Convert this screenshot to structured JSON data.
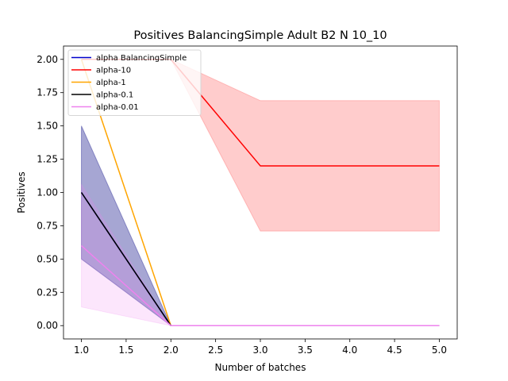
{
  "chart_data": {
    "type": "line",
    "title": "Positives BalancingSimple Adult B2 N 10_10",
    "xlabel": "Number of batches",
    "ylabel": "Positives",
    "xlim": [
      0.8,
      5.2
    ],
    "ylim": [
      -0.1,
      2.1
    ],
    "xticks": [
      1.0,
      1.5,
      2.0,
      2.5,
      3.0,
      3.5,
      4.0,
      4.5,
      5.0
    ],
    "xtick_labels": [
      "1.0",
      "1.5",
      "2.0",
      "2.5",
      "3.0",
      "3.5",
      "4.0",
      "4.5",
      "5.0"
    ],
    "yticks": [
      0.0,
      0.25,
      0.5,
      0.75,
      1.0,
      1.25,
      1.5,
      1.75,
      2.0
    ],
    "ytick_labels": [
      "0.00",
      "0.25",
      "0.50",
      "0.75",
      "1.00",
      "1.25",
      "1.50",
      "1.75",
      "2.00"
    ],
    "grid": false,
    "legend_position": "top-left",
    "x": [
      1,
      2,
      3,
      4,
      5
    ],
    "series": [
      {
        "name": "alpha BalancingSimple",
        "color": "#0000cc",
        "fill": "#000080",
        "fill_opacity": 0.35,
        "values": [
          1.0,
          0.0,
          0.0,
          0.0,
          0.0
        ],
        "lower": [
          0.5,
          0.0,
          0.0,
          0.0,
          0.0
        ],
        "upper": [
          1.5,
          0.0,
          0.0,
          0.0,
          0.0
        ]
      },
      {
        "name": "alpha-10",
        "color": "#ff0000",
        "fill": "#ff0000",
        "fill_opacity": 0.2,
        "values": [
          2.0,
          2.0,
          1.2,
          1.2,
          1.2
        ],
        "lower": [
          2.0,
          2.0,
          0.71,
          0.71,
          0.71
        ],
        "upper": [
          2.0,
          2.0,
          1.69,
          1.69,
          1.69
        ]
      },
      {
        "name": "alpha-1",
        "color": "#ffa500",
        "fill": "#ffa500",
        "fill_opacity": 0.2,
        "values": [
          2.0,
          0.0,
          0.0,
          0.0,
          0.0
        ],
        "lower": [
          2.0,
          0.0,
          0.0,
          0.0,
          0.0
        ],
        "upper": [
          2.0,
          0.0,
          0.0,
          0.0,
          0.0
        ]
      },
      {
        "name": "alpha-0.1",
        "color": "#000000",
        "fill": "#000000",
        "fill_opacity": 0.2,
        "values": [
          1.0,
          0.0,
          0.0,
          0.0,
          0.0
        ],
        "lower": [
          1.0,
          0.0,
          0.0,
          0.0,
          0.0
        ],
        "upper": [
          1.0,
          0.0,
          0.0,
          0.0,
          0.0
        ]
      },
      {
        "name": "alpha-0.01",
        "color": "#ee82ee",
        "fill": "#ee82ee",
        "fill_opacity": 0.2,
        "values": [
          0.6,
          0.0,
          0.0,
          0.0,
          0.0
        ],
        "lower": [
          0.14,
          0.0,
          0.0,
          0.0,
          0.0
        ],
        "upper": [
          1.06,
          0.0,
          0.0,
          0.0,
          0.0
        ]
      }
    ]
  }
}
